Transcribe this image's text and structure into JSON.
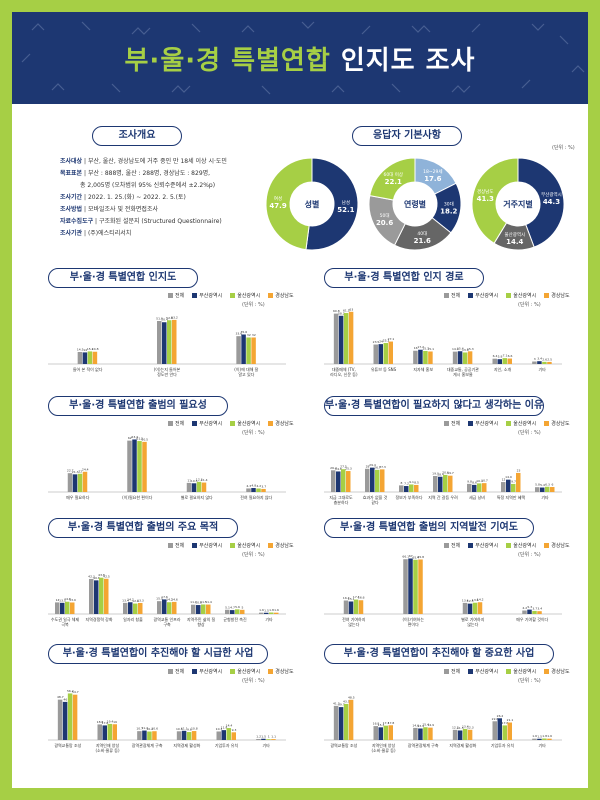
{
  "header": {
    "title_part1": "부·울·경 특별연합 ",
    "title_part2": "인지도 조사"
  },
  "overview": {
    "title": "조사개요",
    "rows": [
      {
        "label": "조사대상",
        "text": "부산, 울산, 경상남도에 거주 중인 만 18세 이상 시·도민"
      },
      {
        "label": "목표표본",
        "text": "부산 : 888명, 울산 : 288명, 경상남도 : 829명,"
      },
      {
        "label": "",
        "text": "총 2,005명 (오차범위 95% 신뢰수준에서 ±2.2%p)"
      },
      {
        "label": "조사기간",
        "text": "2022. 1. 25.(화) ~ 2022. 2. 5.(토)"
      },
      {
        "label": "조사방법",
        "text": "모바일조사 및 전화면접조사"
      },
      {
        "label": "자료수집도구",
        "text": "구조화된 설문지 (Structured Questionnaire)"
      },
      {
        "label": "조사기관",
        "text": "(주)에스티리서치"
      }
    ]
  },
  "respondents": {
    "title": "응답자 기본사항",
    "unit": "(단위 : %)",
    "donuts": [
      {
        "center": "성별",
        "slices": [
          {
            "label": "남성",
            "value": 52.1
          },
          {
            "label": "여성",
            "value": 47.9
          }
        ]
      },
      {
        "center": "연령별",
        "slices": [
          {
            "label": "18~29세",
            "value": 17.6
          },
          {
            "label": "30대",
            "value": 18.2
          },
          {
            "label": "40대",
            "value": 21.6
          },
          {
            "label": "50대",
            "value": 20.6
          },
          {
            "label": "60대 이상",
            "value": 22.1
          }
        ]
      },
      {
        "center": "거주지별",
        "slices": [
          {
            "label": "부산광역시",
            "value": 44.3
          },
          {
            "label": "울산광역시",
            "value": 14.4
          },
          {
            "label": "경상남도",
            "value": 41.3
          }
        ]
      }
    ]
  },
  "legend": [
    "전체",
    "부산광역시",
    "울산광역시",
    "경상남도"
  ],
  "colors": {
    "navy": "#1d3772",
    "green": "#a6cf45",
    "orange": "#f4a533",
    "gray": "#9a9a9a",
    "lightblue": "#8fb3d9",
    "darkgray": "#666666"
  },
  "unit_label": "(단위 : %)",
  "chart_data": [
    {
      "type": "bar",
      "title": "부·울·경 특별연합 인지도",
      "categories": [
        "들어 본 적이 없다",
        "(이)는지 들어본 정도만 안다",
        "(이)에 대해 잘 알고 있다"
      ],
      "series": [
        {
          "name": "전체",
          "values": [
            14.5,
            51.9,
            33.6
          ]
        },
        {
          "name": "부산광역시",
          "values": [
            14.0,
            50.4,
            35.6
          ]
        },
        {
          "name": "울산광역시",
          "values": [
            15.2,
            52.8,
            32.0
          ]
        },
        {
          "name": "경상남도",
          "values": [
            14.8,
            53.2,
            32.0
          ]
        }
      ],
      "ylim": [
        0,
        100
      ]
    },
    {
      "type": "bar",
      "title": "부·울·경 특별연합 인지 경로",
      "categories": [
        "대중매체 (TV, 라디오, 신문 등)",
        "유튜브 등 SNS",
        "지자체 홍보",
        "대중교통, 공공기관 게시 홍보물",
        "지인, 소개",
        "기타"
      ],
      "series": [
        {
          "name": "전체",
          "values": [
            60.8,
            23.5,
            16.0,
            14.9,
            6.4,
            3.0
          ]
        },
        {
          "name": "부산광역시",
          "values": [
            58.2,
            24.0,
            17.2,
            15.4,
            5.8,
            3.4
          ]
        },
        {
          "name": "울산광역시",
          "values": [
            61.5,
            25.3,
            15.7,
            13.9,
            7.1,
            2.6
          ]
        },
        {
          "name": "경상남도",
          "values": [
            63.0,
            27.1,
            15.1,
            15.3,
            6.6,
            2.5
          ]
        }
      ],
      "ylim": [
        0,
        100
      ]
    },
    {
      "type": "bar",
      "title": "부·울·경 특별연합 출범의 필요성",
      "categories": [
        "매우 필요하다",
        "(이)필요한 편이다",
        "별로 필요하지 않다",
        "전혀 필요하지 않다"
      ],
      "series": [
        {
          "name": "전체",
          "values": [
            22.7,
            62.0,
            11.0,
            4.3
          ]
        },
        {
          "name": "부산광역시",
          "values": [
            21.3,
            63.4,
            10.5,
            4.8
          ]
        },
        {
          "name": "울산광역시",
          "values": [
            22.0,
            61.5,
            12.3,
            4.2
          ]
        },
        {
          "name": "경상남도",
          "values": [
            24.4,
            60.5,
            11.4,
            3.7
          ]
        }
      ],
      "ylim": [
        0,
        100
      ]
    },
    {
      "type": "bar",
      "title": "부·울·경 특별연합이 필요하지 않다고 생각하는 이유",
      "categories": [
        "지금 그대로도 충분하다",
        "효과가 없을 것 같다",
        "정보가 부족하다",
        "지역 간 갈등 우려",
        "세금 낭비",
        "특정 지역만 혜택",
        "기타"
      ],
      "series": [
        {
          "name": "전체",
          "values": [
            26.2,
            28.0,
            8.0,
            19.3,
            9.8,
            12.0,
            5.8
          ]
        },
        {
          "name": "부산광역시",
          "values": [
            24.8,
            29.4,
            7.2,
            18.4,
            8.6,
            14.9,
            5.4
          ]
        },
        {
          "name": "울산광역시",
          "values": [
            27.5,
            26.7,
            9.1,
            20.6,
            10.4,
            9.7,
            6.3
          ]
        },
        {
          "name": "경상남도",
          "values": [
            25.3,
            27.3,
            8.5,
            19.7,
            10.7,
            23.0,
            6.0
          ]
        }
      ],
      "ylim": [
        0,
        100
      ]
    },
    {
      "type": "bar",
      "title": "부·울·경 특별연합 출범의 주요 목적",
      "categories": [
        "수도권 일극 체제 극복",
        "지역경쟁력 강화",
        "일자리 창출",
        "광역교통 인프라 구축",
        "지역주민 삶의 질 향상",
        "균형발전 촉진",
        "기타"
      ],
      "series": [
        {
          "name": "전체",
          "values": [
            14.0,
            42.3,
            13.4,
            15.5,
            11.2,
            5.1,
            1.6
          ]
        },
        {
          "name": "부산광역시",
          "values": [
            13.5,
            40.6,
            14.2,
            17.6,
            10.8,
            4.7,
            1.5
          ]
        },
        {
          "name": "울산광역시",
          "values": [
            14.8,
            43.8,
            12.6,
            14.2,
            11.5,
            5.6,
            1.8
          ]
        },
        {
          "name": "경상남도",
          "values": [
            13.9,
            42.5,
            13.3,
            14.6,
            11.4,
            5.0,
            1.6
          ]
        }
      ],
      "ylim": [
        0,
        100
      ]
    },
    {
      "type": "bar",
      "title": "부·울·경 특별연합 출범의 지역발전 기여도",
      "categories": [
        "전혀 기여하지 않는다",
        "(이)기여하는 편이다",
        "별로 기여하지 않는다",
        "매우 기여할 것이다"
      ],
      "series": [
        {
          "name": "전체",
          "values": [
            16.3,
            66.1,
            13.4,
            4.2
          ]
        },
        {
          "name": "부산광역시",
          "values": [
            15.1,
            67.0,
            12.5,
            5.3
          ]
        },
        {
          "name": "울산광역시",
          "values": [
            17.4,
            65.4,
            13.6,
            3.7
          ]
        },
        {
          "name": "경상남도",
          "values": [
            16.6,
            65.8,
            14.2,
            3.4
          ]
        }
      ],
      "ylim": [
        0,
        100
      ]
    },
    {
      "type": "bar",
      "title": "부·울·경 특별연합이 추진해야 할 시급한 사업",
      "categories": [
        "광역교통망 조성",
        "지역인재 양성 (소비·물류 등)",
        "광역관광체계 구축",
        "지역경제 활성화",
        "기업투자 유치",
        "기타"
      ],
      "series": [
        {
          "name": "전체",
          "values": [
            48.7,
            18.8,
            10.7,
            10.5,
            10.3,
            1.2
          ]
        },
        {
          "name": "부산광역시",
          "values": [
            46.0,
            17.6,
            11.4,
            11.1,
            11.9,
            1.5
          ]
        },
        {
          "name": "울산광역시",
          "values": [
            56.2,
            19.4,
            10.2,
            9.6,
            14.4,
            1.0
          ]
        },
        {
          "name": "경상남도",
          "values": [
            54.7,
            19.0,
            10.6,
            10.8,
            9.3,
            1.1
          ]
        }
      ],
      "ylim": [
        0,
        100
      ]
    },
    {
      "type": "bar",
      "title": "부·울·경 특별연합이 추진해야 할 중요한 사업",
      "categories": [
        "광역교통망 조성",
        "지역인재 양성 (소비·물류 등)",
        "광역관광체계 구축",
        "지역경제 활성화",
        "기업투자 유치",
        "기타"
      ],
      "series": [
        {
          "name": "전체",
          "values": [
            41.2,
            16.8,
            14.6,
            12.2,
            22.6,
            1.6
          ]
        },
        {
          "name": "부산광역시",
          "values": [
            39.7,
            15.3,
            13.9,
            11.5,
            26.2,
            1.5
          ]
        },
        {
          "name": "울산광역시",
          "values": [
            43.5,
            17.3,
            15.4,
            13.4,
            17.6,
            1.8
          ]
        },
        {
          "name": "경상남도",
          "values": [
            48.5,
            17.8,
            14.9,
            12.3,
            21.1,
            1.6
          ]
        }
      ],
      "ylim": [
        0,
        100
      ]
    }
  ]
}
